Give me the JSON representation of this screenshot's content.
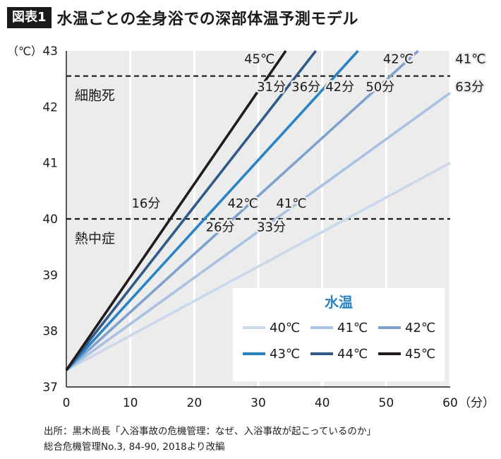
{
  "header": {
    "badge": "図表1",
    "title": "水温ごとの全身浴での深部体温予測モデル"
  },
  "source": {
    "line1": "出所：黒木尚長「入浴事故の危機管理：なぜ、入浴事故が起こっているのか」",
    "line2": "総合危機管理No.3, 84-90, 2018より改編"
  },
  "chart_data": {
    "type": "line",
    "title": "水温ごとの全身浴での深部体温予測モデル",
    "xlabel": "（分）",
    "ylabel": "（℃）",
    "xlim": [
      0,
      60
    ],
    "ylim": [
      37,
      43
    ],
    "xticks": [
      "0",
      "10",
      "20",
      "30",
      "40",
      "50",
      "60"
    ],
    "yticks": [
      "37",
      "38",
      "39",
      "40",
      "41",
      "42",
      "43"
    ],
    "grid": "vertical",
    "legend": {
      "title": "水温",
      "placement": "bottom-right"
    },
    "series": [
      {
        "name": "40℃",
        "color": "#c9d8ea",
        "x": [
          0,
          60
        ],
        "y": [
          37.3,
          41.0
        ]
      },
      {
        "name": "41℃",
        "color": "#a9c2e2",
        "x": [
          0,
          60
        ],
        "y": [
          37.3,
          42.25
        ]
      },
      {
        "name": "42℃",
        "color": "#7ea2cd",
        "x": [
          0,
          55
        ],
        "y": [
          37.3,
          43.0
        ]
      },
      {
        "name": "43℃",
        "color": "#2a83c4",
        "x": [
          0,
          45.6
        ],
        "y": [
          37.3,
          43.0
        ]
      },
      {
        "name": "44℃",
        "color": "#2f5a8a",
        "x": [
          0,
          39
        ],
        "y": [
          37.3,
          43.0
        ]
      },
      {
        "name": "45℃",
        "color": "#231a1c",
        "x": [
          0,
          34.3
        ],
        "y": [
          37.3,
          43.0
        ]
      }
    ],
    "reference_lines": [
      {
        "name": "細胞死",
        "y": 42.55
      },
      {
        "name": "熱中症",
        "y": 40.0
      }
    ],
    "annotations": [
      {
        "id": "ann-45-top",
        "text": "45℃",
        "x": 27.8,
        "y": 42.78
      },
      {
        "id": "ann-42-top",
        "text": "42℃",
        "x": 49.5,
        "y": 42.78
      },
      {
        "id": "ann-41-top",
        "text": "41℃",
        "x": 60.8,
        "y": 42.78
      },
      {
        "id": "ann-31",
        "text": "31分",
        "x": 29.8,
        "y": 42.28
      },
      {
        "id": "ann-36",
        "text": "36分",
        "x": 35.2,
        "y": 42.28
      },
      {
        "id": "ann-42m",
        "text": "42分",
        "x": 40.5,
        "y": 42.28
      },
      {
        "id": "ann-50",
        "text": "50分",
        "x": 46.8,
        "y": 42.28
      },
      {
        "id": "ann-63",
        "text": "63分",
        "x": 60.8,
        "y": 42.28
      },
      {
        "id": "ann-16",
        "text": "16分",
        "x": 10.2,
        "y": 40.2
      },
      {
        "id": "ann-42-mid",
        "text": "42℃",
        "x": 25.2,
        "y": 40.2
      },
      {
        "id": "ann-41-mid",
        "text": "41℃",
        "x": 32.8,
        "y": 40.2
      },
      {
        "id": "ann-26",
        "text": "26分",
        "x": 21.8,
        "y": 39.78
      },
      {
        "id": "ann-33",
        "text": "33分",
        "x": 29.8,
        "y": 39.78
      }
    ]
  }
}
